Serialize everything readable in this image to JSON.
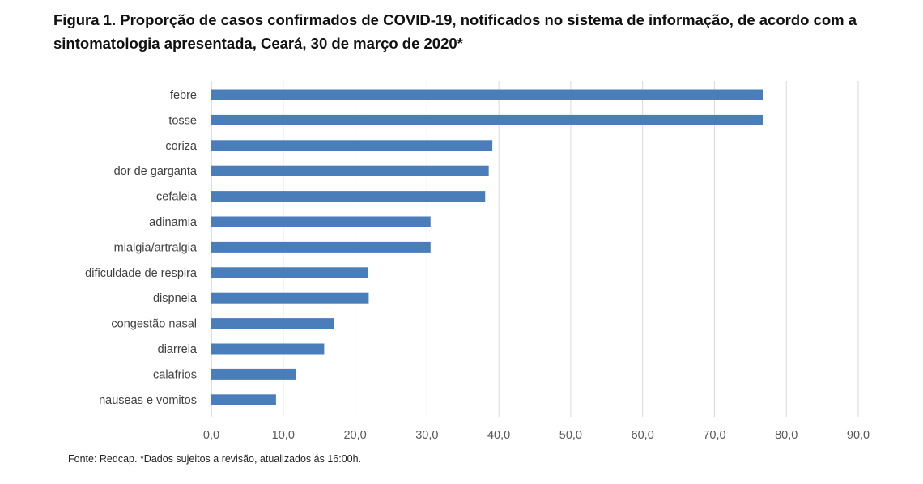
{
  "chart_data": {
    "type": "bar",
    "orientation": "horizontal",
    "title": "Figura 1. Proporção de casos confirmados de COVID-19, notificados no sistema de informação, de acordo com a sintomatologia apresentada, Ceará, 30 de março de 2020*",
    "categories": [
      "febre",
      "tosse",
      "coriza",
      "dor de garganta",
      "cefaleia",
      "adinamia",
      "mialgia/artralgia",
      "dificuldade de respira",
      "dispneia",
      "congestão nasal",
      "diarreia",
      "calafrios",
      "nauseas e vomitos"
    ],
    "values": [
      76.8,
      76.8,
      39.1,
      38.6,
      38.1,
      30.5,
      30.5,
      21.8,
      21.9,
      17.1,
      15.7,
      11.8,
      9.0
    ],
    "xlim": [
      0,
      90
    ],
    "xticks": [
      "0,0",
      "10,0",
      "20,0",
      "30,0",
      "40,0",
      "50,0",
      "60,0",
      "70,0",
      "80,0",
      "90,0"
    ],
    "xlabel": "",
    "ylabel": "",
    "grid": true,
    "bar_color": "#4a7ebb",
    "footnote": "Fonte: Redcap. *Dados sujeitos a revisão, atualizados ás 16:00h."
  }
}
